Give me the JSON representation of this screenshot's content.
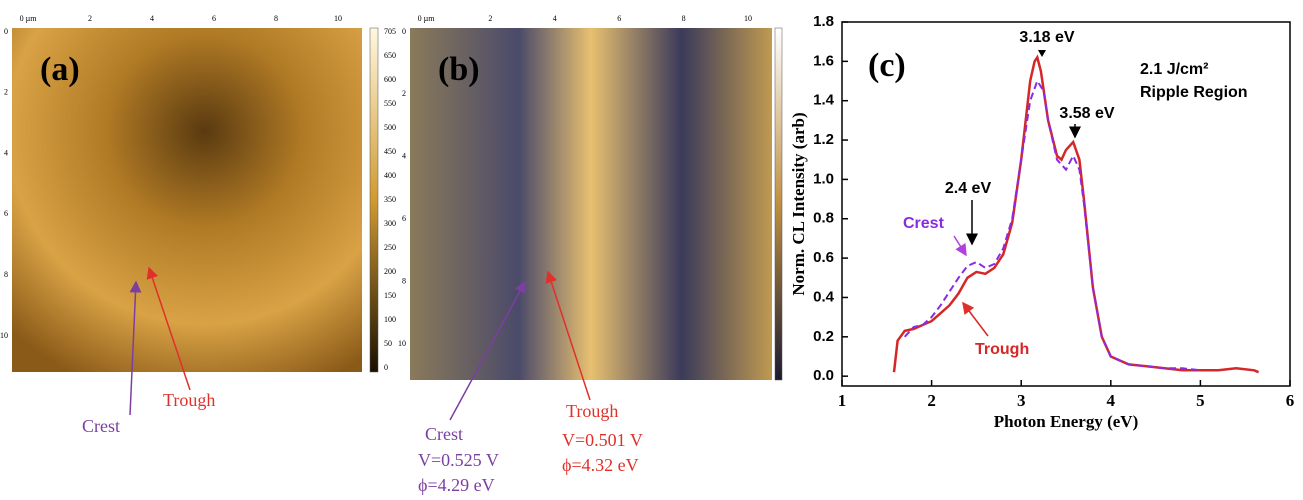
{
  "panel_a": {
    "label": "(a)",
    "x_ticks": [
      "0 µm",
      "2",
      "4",
      "6",
      "8",
      "10"
    ],
    "y_ticks": [
      "0",
      "2",
      "4",
      "6",
      "8",
      "10"
    ],
    "colorbar_ticks": [
      "705",
      "650",
      "600",
      "550",
      "500",
      "450",
      "400",
      "350",
      "300",
      "250",
      "200",
      "150",
      "100",
      "50",
      "0"
    ],
    "crest": "Crest",
    "trough": "Trough"
  },
  "panel_b": {
    "label": "(b)",
    "x_ticks": [
      "0 µm",
      "2",
      "4",
      "6",
      "8",
      "10"
    ],
    "y_ticks": [
      "0",
      "2",
      "4",
      "6",
      "8",
      "10"
    ],
    "crest": {
      "label": "Crest",
      "voltage": "V=0.525  V",
      "work_function": "ϕ=4.29 eV"
    },
    "trough": {
      "label": "Trough",
      "voltage": "V=0.501  V",
      "work_function": "ϕ=4.32 eV"
    }
  },
  "chart_data": {
    "type": "line",
    "label": "(c)",
    "x_label": "Photon Energy (eV)",
    "y_label": "Norm. CL Intensity (arb)",
    "xlim": [
      1,
      6
    ],
    "xticks": [
      1,
      2,
      3,
      4,
      5,
      6
    ],
    "ylim": [
      -0.05,
      1.8
    ],
    "yticks": [
      {
        "value": 0,
        "label": "0.0"
      },
      0.2,
      0.4,
      0.6,
      0.8,
      {
        "value": 1,
        "label": "1.0"
      },
      1.2,
      1.4,
      1.6,
      1.8
    ],
    "annotations": [
      "3.18 eV",
      "3.58 eV",
      "2.4 eV",
      "2.1 J/cm²",
      "Ripple Region"
    ],
    "series": [
      {
        "name": "Trough",
        "color": "#d62728",
        "dash": false,
        "x": [
          1.58,
          1.62,
          1.7,
          1.8,
          1.9,
          2.0,
          2.1,
          2.2,
          2.3,
          2.4,
          2.5,
          2.6,
          2.7,
          2.8,
          2.9,
          3.0,
          3.05,
          3.1,
          3.15,
          3.18,
          3.22,
          3.3,
          3.4,
          3.45,
          3.5,
          3.58,
          3.65,
          3.7,
          3.8,
          3.9,
          4.0,
          4.2,
          4.4,
          4.6,
          4.8,
          5.0,
          5.2,
          5.4,
          5.6,
          5.65
        ],
        "values": [
          0.02,
          0.18,
          0.23,
          0.24,
          0.26,
          0.28,
          0.32,
          0.36,
          0.42,
          0.5,
          0.53,
          0.52,
          0.55,
          0.62,
          0.78,
          1.1,
          1.3,
          1.5,
          1.6,
          1.62,
          1.55,
          1.3,
          1.12,
          1.1,
          1.15,
          1.19,
          1.1,
          0.9,
          0.45,
          0.2,
          0.1,
          0.06,
          0.05,
          0.04,
          0.03,
          0.03,
          0.03,
          0.04,
          0.03,
          0.02
        ]
      },
      {
        "name": "Crest",
        "color": "#8a2be2",
        "dash": true,
        "x": [
          1.7,
          1.8,
          1.9,
          2.0,
          2.1,
          2.2,
          2.3,
          2.4,
          2.5,
          2.6,
          2.7,
          2.8,
          2.9,
          3.0,
          3.1,
          3.18,
          3.25,
          3.3,
          3.4,
          3.5,
          3.58,
          3.65,
          3.7,
          3.8,
          3.9,
          4.0,
          4.2,
          4.4,
          4.6,
          4.8,
          5.0
        ],
        "values": [
          0.2,
          0.25,
          0.26,
          0.3,
          0.36,
          0.43,
          0.5,
          0.56,
          0.58,
          0.55,
          0.57,
          0.65,
          0.8,
          1.1,
          1.4,
          1.5,
          1.45,
          1.3,
          1.1,
          1.05,
          1.12,
          1.05,
          0.88,
          0.45,
          0.2,
          0.1,
          0.06,
          0.05,
          0.04,
          0.04,
          0.03
        ]
      }
    ]
  }
}
